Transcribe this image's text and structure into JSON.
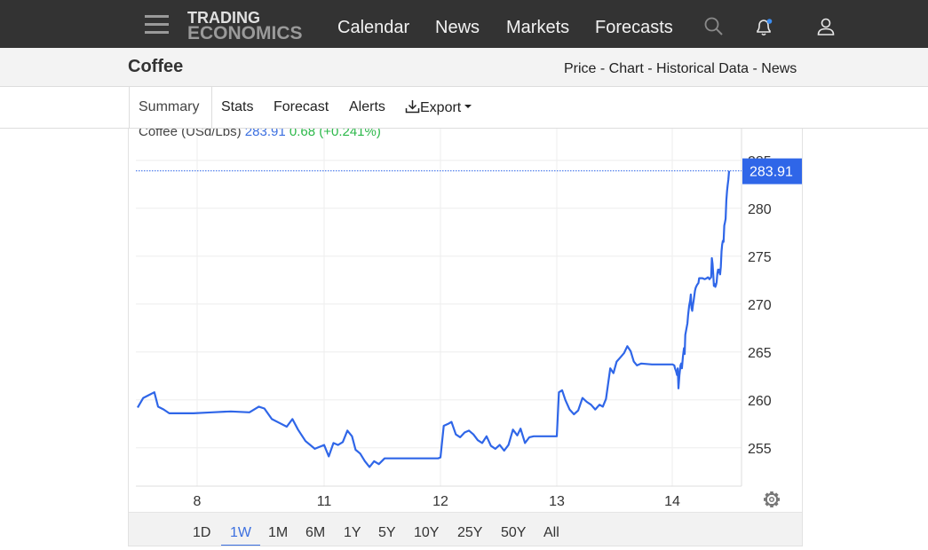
{
  "header": {
    "logo_line1": "TRADING",
    "logo_line2": "ECONOMICS",
    "nav": [
      "Calendar",
      "News",
      "Markets",
      "Forecasts"
    ],
    "icons": [
      "menu-icon",
      "search-icon",
      "bell-icon",
      "user-icon"
    ],
    "notification_dot_color": "#3b8cf0"
  },
  "subheader": {
    "title": "Coffee",
    "links": [
      "Price",
      "Chart",
      "Historical Data",
      "News"
    ],
    "separator": " - "
  },
  "tabs": {
    "items": [
      "Summary",
      "Stats",
      "Forecast",
      "Alerts",
      "Export"
    ],
    "active": "Summary",
    "export_icon": "download-icon"
  },
  "legend": {
    "name": "Coffee (USd/Lbs)",
    "price": "283.91",
    "change": "0.68 (+0.241%)"
  },
  "ranges": {
    "items": [
      "1D",
      "1W",
      "1M",
      "6M",
      "1Y",
      "5Y",
      "10Y",
      "25Y",
      "50Y",
      "All"
    ],
    "active": "1W"
  },
  "colors": {
    "line": "#2f66e8",
    "price_tag": "#2f66e8",
    "change_positive": "#2cb84a",
    "topbar": "#333333"
  },
  "chart_data": {
    "type": "line",
    "title": "",
    "xlabel": "",
    "ylabel": "",
    "x_ticks": [
      "8",
      "11",
      "12",
      "13",
      "14"
    ],
    "y_ticks": [
      255,
      260,
      265,
      270,
      275,
      280,
      285
    ],
    "ylim": [
      251,
      286.5
    ],
    "last_value": 283.91,
    "last_value_label": "283.91",
    "grid": true,
    "y_axis_side": "right",
    "series": [
      {
        "name": "Coffee",
        "points": [
          [
            0.0,
            259.2
          ],
          [
            0.03,
            260.2
          ],
          [
            0.06,
            260.5
          ],
          [
            0.09,
            260.8
          ],
          [
            0.11,
            259.3
          ],
          [
            0.14,
            259.0
          ],
          [
            0.17,
            258.6
          ],
          [
            0.22,
            258.6
          ],
          [
            0.3,
            258.6
          ],
          [
            0.4,
            258.7
          ],
          [
            0.5,
            258.8
          ],
          [
            0.6,
            258.7
          ],
          [
            0.65,
            259.3
          ],
          [
            0.68,
            259.1
          ],
          [
            0.72,
            258.0
          ],
          [
            0.76,
            257.6
          ],
          [
            0.8,
            257.2
          ],
          [
            0.83,
            258.0
          ],
          [
            0.86,
            256.9
          ],
          [
            0.9,
            255.7
          ],
          [
            0.95,
            254.9
          ],
          [
            1.0,
            255.3
          ],
          [
            1.04,
            254.1
          ],
          [
            1.08,
            255.5
          ],
          [
            1.12,
            255.3
          ],
          [
            1.16,
            255.6
          ],
          [
            1.2,
            256.8
          ],
          [
            1.24,
            256.2
          ],
          [
            1.27,
            254.8
          ],
          [
            1.31,
            254.4
          ],
          [
            1.35,
            253.6
          ],
          [
            1.39,
            253.0
          ],
          [
            1.43,
            253.6
          ],
          [
            1.47,
            253.3
          ],
          [
            1.52,
            253.9
          ],
          [
            1.58,
            253.9
          ],
          [
            1.7,
            253.9
          ],
          [
            1.85,
            253.9
          ],
          [
            1.98,
            253.9
          ],
          [
            2.0,
            254.0
          ],
          [
            2.03,
            257.3
          ],
          [
            2.07,
            257.5
          ],
          [
            2.1,
            257.7
          ],
          [
            2.14,
            256.4
          ],
          [
            2.18,
            256.1
          ],
          [
            2.22,
            256.6
          ],
          [
            2.26,
            256.8
          ],
          [
            2.3,
            256.4
          ],
          [
            2.34,
            255.8
          ],
          [
            2.38,
            255.5
          ],
          [
            2.42,
            256.2
          ],
          [
            2.46,
            255.2
          ],
          [
            2.5,
            254.9
          ],
          [
            2.54,
            255.3
          ],
          [
            2.58,
            254.7
          ],
          [
            2.62,
            255.3
          ],
          [
            2.66,
            256.9
          ],
          [
            2.7,
            256.3
          ],
          [
            2.73,
            257.0
          ],
          [
            2.77,
            255.5
          ],
          [
            2.81,
            256.1
          ],
          [
            2.85,
            256.2
          ],
          [
            2.92,
            256.2
          ],
          [
            3.0,
            256.2
          ],
          [
            3.06,
            256.2
          ],
          [
            3.08,
            260.8
          ],
          [
            3.11,
            261.0
          ],
          [
            3.14,
            260.0
          ],
          [
            3.18,
            259.0
          ],
          [
            3.22,
            258.5
          ],
          [
            3.26,
            258.9
          ],
          [
            3.3,
            260.2
          ],
          [
            3.34,
            259.8
          ],
          [
            3.38,
            259.5
          ],
          [
            3.42,
            259.0
          ],
          [
            3.46,
            259.5
          ],
          [
            3.49,
            259.3
          ],
          [
            3.52,
            260.1
          ],
          [
            3.56,
            263.3
          ],
          [
            3.59,
            262.8
          ],
          [
            3.62,
            264.0
          ],
          [
            3.66,
            264.5
          ],
          [
            3.69,
            264.9
          ],
          [
            3.72,
            265.6
          ],
          [
            3.75,
            265.1
          ],
          [
            3.78,
            264.0
          ],
          [
            3.81,
            263.6
          ],
          [
            3.85,
            263.8
          ],
          [
            3.95,
            263.7
          ],
          [
            4.05,
            263.7
          ],
          [
            4.15,
            263.7
          ],
          [
            4.2,
            263.6
          ],
          [
            4.22,
            263.3
          ],
          [
            4.25,
            263.0
          ],
          [
            4.28,
            262.6
          ],
          [
            4.3,
            263.3
          ],
          [
            4.32,
            261.2
          ],
          [
            4.35,
            262.6
          ],
          [
            4.38,
            263.6
          ],
          [
            4.4,
            263.8
          ],
          [
            4.42,
            263.3
          ],
          [
            4.45,
            264.5
          ],
          [
            4.48,
            265.4
          ],
          [
            4.5,
            264.8
          ],
          [
            4.52,
            266.8
          ],
          [
            4.55,
            267.4
          ],
          [
            4.58,
            268.0
          ],
          [
            4.6,
            268.8
          ],
          [
            4.63,
            269.8
          ],
          [
            4.66,
            270.4
          ],
          [
            4.68,
            271.0
          ],
          [
            4.7,
            269.6
          ],
          [
            4.72,
            269.3
          ],
          [
            4.74,
            269.9
          ],
          [
            4.76,
            270.3
          ],
          [
            4.8,
            271.4
          ],
          [
            4.82,
            271.7
          ],
          [
            4.86,
            272.0
          ],
          [
            4.9,
            272.2
          ],
          [
            4.92,
            272.7
          ],
          [
            4.96,
            272.7
          ],
          [
            5.02,
            272.7
          ],
          [
            5.08,
            272.6
          ],
          [
            5.14,
            272.7
          ],
          [
            5.18,
            272.8
          ],
          [
            5.2,
            272.7
          ],
          [
            5.22,
            272.6
          ],
          [
            5.24,
            272.7
          ],
          [
            5.27,
            272.8
          ],
          [
            5.29,
            274.8
          ],
          [
            5.31,
            274.2
          ],
          [
            5.33,
            273.1
          ],
          [
            5.35,
            271.9
          ],
          [
            5.37,
            272.1
          ],
          [
            5.39,
            271.8
          ],
          [
            5.41,
            272.0
          ],
          [
            5.43,
            272.3
          ],
          [
            5.45,
            273.2
          ],
          [
            5.47,
            273.6
          ],
          [
            5.49,
            273.3
          ],
          [
            5.51,
            273.6
          ],
          [
            5.53,
            273.1
          ],
          [
            5.55,
            273.9
          ],
          [
            5.57,
            275.5
          ],
          [
            5.59,
            276.2
          ],
          [
            5.61,
            276.6
          ],
          [
            5.63,
            276.5
          ],
          [
            5.65,
            278.2
          ],
          [
            5.67,
            278.5
          ],
          [
            5.69,
            278.9
          ],
          [
            5.71,
            280.8
          ],
          [
            5.73,
            281.8
          ],
          [
            5.75,
            282.4
          ],
          [
            5.77,
            283.0
          ],
          [
            5.79,
            283.91
          ]
        ]
      }
    ]
  }
}
